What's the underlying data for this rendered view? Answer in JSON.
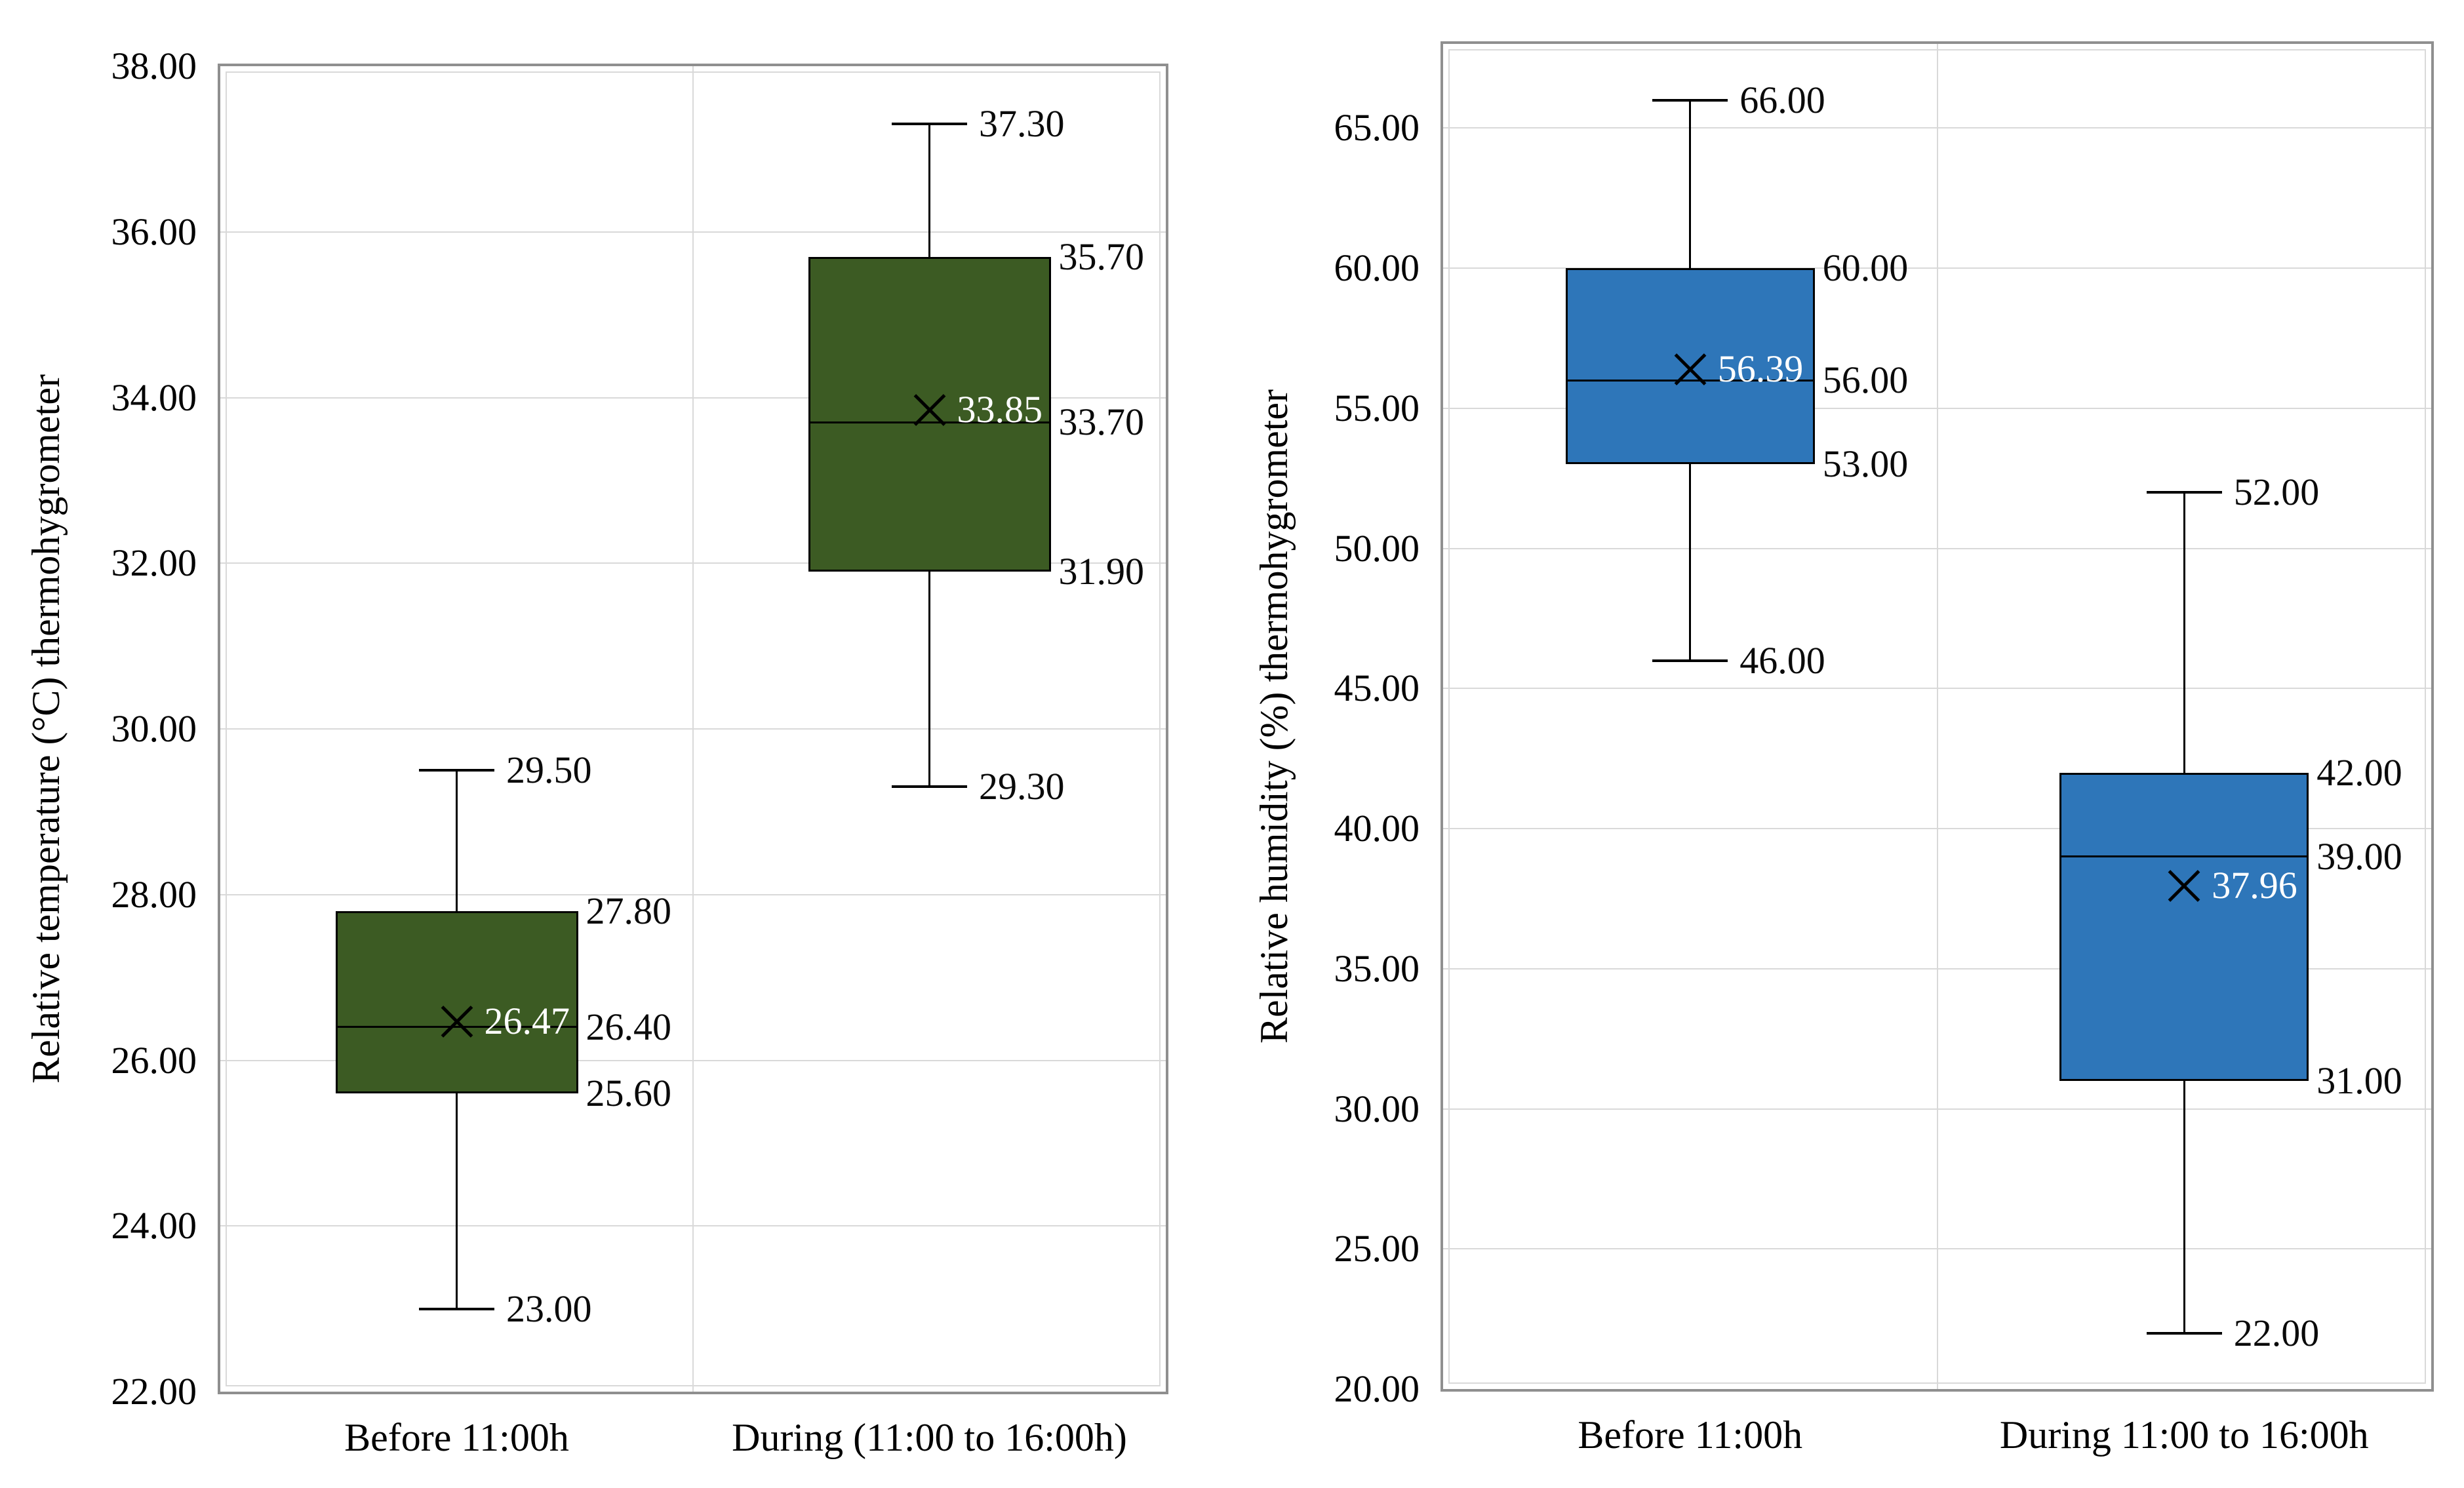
{
  "page": {
    "background": "#ffffff"
  },
  "chart_data": [
    {
      "type": "box",
      "panel": "left",
      "y_axis_title": "Relative temperature (°C) thermohygrometer",
      "y_axis": {
        "min": 22,
        "max": 38,
        "tick_step": 2,
        "ticks": [
          {
            "value": 38,
            "label": "38.00"
          },
          {
            "value": 36,
            "label": "36.00"
          },
          {
            "value": 34,
            "label": "34.00"
          },
          {
            "value": 32,
            "label": "32.00"
          },
          {
            "value": 30,
            "label": "30.00"
          },
          {
            "value": 28,
            "label": "28.00"
          },
          {
            "value": 26,
            "label": "26.00"
          },
          {
            "value": 24,
            "label": "24.00"
          },
          {
            "value": 22,
            "label": "22.00"
          }
        ]
      },
      "categories": [
        "Before 11:00h",
        "During (11:00 to 16:00h)"
      ],
      "box_fill": "#3C5B23",
      "colors": {
        "box_border": "#000000",
        "whisker": "#000000",
        "gridline": "#d9d9d9",
        "mean_label": "#ffffff",
        "mean_marker": "#000000"
      },
      "grid": true,
      "legend": "none",
      "boxes": [
        {
          "category": "Before 11:00h",
          "min": 23.0,
          "q1": 25.6,
          "median": 26.4,
          "mean": 26.47,
          "q3": 27.8,
          "max": 29.5,
          "labels": {
            "min": "23.00",
            "q1": "25.60",
            "median": "26.40",
            "mean": "26.47",
            "q3": "27.80",
            "max": "29.50"
          }
        },
        {
          "category": "During (11:00 to 16:00h)",
          "min": 29.3,
          "q1": 31.9,
          "median": 33.7,
          "mean": 33.85,
          "q3": 35.7,
          "max": 37.3,
          "labels": {
            "min": "29.30",
            "q1": "31.90",
            "median": "33.70",
            "mean": "33.85",
            "q3": "35.70",
            "max": "37.30"
          }
        }
      ]
    },
    {
      "type": "box",
      "panel": "right",
      "y_axis_title": "Relative humidity (%) thermohygrometer",
      "y_axis": {
        "min": 20,
        "max": 68,
        "tick_step": 5,
        "ticks": [
          {
            "value": 65,
            "label": "65.00"
          },
          {
            "value": 60,
            "label": "60.00"
          },
          {
            "value": 55,
            "label": "55.00"
          },
          {
            "value": 50,
            "label": "50.00"
          },
          {
            "value": 45,
            "label": "45.00"
          },
          {
            "value": 40,
            "label": "40.00"
          },
          {
            "value": 35,
            "label": "35.00"
          },
          {
            "value": 30,
            "label": "30.00"
          },
          {
            "value": 25,
            "label": "25.00"
          },
          {
            "value": 20,
            "label": "20.00"
          }
        ]
      },
      "categories": [
        "Before 11:00h",
        "During 11:00 to 16:00h"
      ],
      "box_fill": "#2E76B9",
      "colors": {
        "box_border": "#000000",
        "whisker": "#000000",
        "gridline": "#d9d9d9",
        "mean_label": "#ffffff",
        "mean_marker": "#000000"
      },
      "grid": true,
      "legend": "none",
      "boxes": [
        {
          "category": "Before 11:00h",
          "min": 46.0,
          "q1": 53.0,
          "median": 56.0,
          "mean": 56.39,
          "q3": 60.0,
          "max": 66.0,
          "labels": {
            "min": "46.00",
            "q1": "53.00",
            "median": "56.00",
            "mean": "56.39",
            "q3": "60.00",
            "max": "66.00"
          }
        },
        {
          "category": "During 11:00 to 16:00h",
          "min": 22.0,
          "q1": 31.0,
          "median": 39.0,
          "mean": 37.96,
          "q3": 42.0,
          "max": 52.0,
          "labels": {
            "min": "22.00",
            "q1": "31.00",
            "median": "39.00",
            "mean": "37.96",
            "q3": "42.00",
            "max": "52.00"
          }
        }
      ]
    }
  ]
}
